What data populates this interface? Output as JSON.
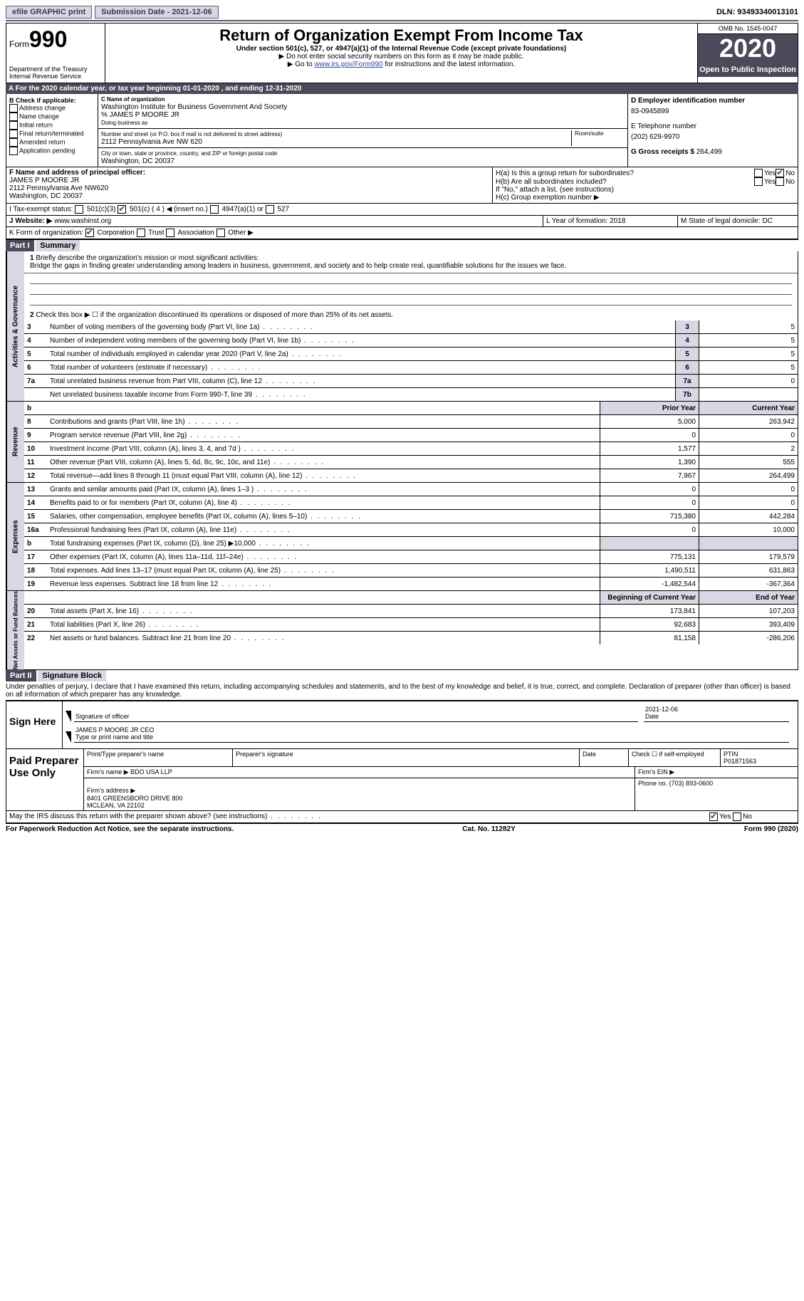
{
  "topbar": {
    "efile": "efile GRAPHIC print",
    "submission": "Submission Date - 2021-12-06",
    "dln": "DLN: 93493340013101"
  },
  "header": {
    "form_label": "Form",
    "form_num": "990",
    "dept": "Department of the Treasury\nInternal Revenue Service",
    "title": "Return of Organization Exempt From Income Tax",
    "subtitle": "Under section 501(c), 527, or 4947(a)(1) of the Internal Revenue Code (except private foundations)",
    "note1": "▶ Do not enter social security numbers on this form as it may be made public.",
    "note2_pre": "▶ Go to ",
    "note2_link": "www.irs.gov/Form990",
    "note2_post": " for instructions and the latest information.",
    "omb": "OMB No. 1545-0047",
    "year": "2020",
    "inspection": "Open to Public Inspection"
  },
  "period": "For the 2020 calendar year, or tax year beginning 01-01-2020   , and ending 12-31-2020",
  "section_b": {
    "label": "B Check if applicable:",
    "items": [
      "Address change",
      "Name change",
      "Initial return",
      "Final return/terminated",
      "Amended return",
      "Application pending"
    ]
  },
  "section_c": {
    "name_label": "C Name of organization",
    "name": "Washington Institute for Business Government And Society",
    "care_of": "% JAMES P MOORE JR",
    "dba_label": "Doing business as",
    "addr_label": "Number and street (or P.O. box if mail is not delivered to street address)",
    "room_label": "Room/suite",
    "addr": "2112 Pennsylvania Ave NW 620",
    "city_label": "City or town, state or province, country, and ZIP or foreign postal code",
    "city": "Washington, DC  20037"
  },
  "section_d": {
    "ein_label": "D Employer identification number",
    "ein": "83-0945899",
    "phone_label": "E Telephone number",
    "phone": "(202) 629-9970",
    "gross_label": "G Gross receipts $ ",
    "gross": "264,499"
  },
  "section_f": {
    "label": "F  Name and address of principal officer:",
    "name": "JAMES P MOORE JR",
    "addr": "2112 Pennsylvania Ave NW620\nWashington, DC  20037"
  },
  "section_h": {
    "ha": "H(a)  Is this a group return for subordinates?",
    "hb": "H(b)  Are all subordinates included?",
    "hb_note": "If \"No,\" attach a list. (see instructions)",
    "hc": "H(c)  Group exemption number ▶",
    "yes": "Yes",
    "no": "No"
  },
  "section_i": {
    "label": "I    Tax-exempt status:",
    "opts": [
      "501(c)(3)",
      "501(c) ( 4 ) ◀ (insert no.)",
      "4947(a)(1) or",
      "527"
    ]
  },
  "section_j": {
    "label": "J   Website: ▶",
    "value": " www.washinst.org"
  },
  "section_k": {
    "label": "K Form of organization:",
    "opts": [
      "Corporation",
      "Trust",
      "Association",
      "Other ▶"
    ]
  },
  "section_l": {
    "year_label": "L Year of formation: ",
    "year": "2018",
    "state_label": "M State of legal domicile: ",
    "state": "DC"
  },
  "part1": {
    "header": "Part I",
    "title": "Summary",
    "line1_label": "Briefly describe the organization's mission or most significant activities:",
    "mission": "Bridge the gaps in finding greater understanding among leaders in business, government, and society and to help create real, quantifiable solutions for the issues we face.",
    "line2": "Check this box ▶ ☐  if the organization discontinued its operations or disposed of more than 25% of its net assets.",
    "governance_tab": "Activities & Governance",
    "revenue_tab": "Revenue",
    "expenses_tab": "Expenses",
    "netassets_tab": "Net Assets or Fund Balances",
    "prior_year": "Prior Year",
    "current_year": "Current Year",
    "begin_year": "Beginning of Current Year",
    "end_year": "End of Year",
    "rows_gov": [
      {
        "n": "3",
        "label": "Number of voting members of the governing body (Part VI, line 1a)",
        "box": "3",
        "val": "5"
      },
      {
        "n": "4",
        "label": "Number of independent voting members of the governing body (Part VI, line 1b)",
        "box": "4",
        "val": "5"
      },
      {
        "n": "5",
        "label": "Total number of individuals employed in calendar year 2020 (Part V, line 2a)",
        "box": "5",
        "val": "5"
      },
      {
        "n": "6",
        "label": "Total number of volunteers (estimate if necessary)",
        "box": "6",
        "val": "5"
      },
      {
        "n": "7a",
        "label": "Total unrelated business revenue from Part VIII, column (C), line 12",
        "box": "7a",
        "val": "0"
      },
      {
        "n": "",
        "label": "Net unrelated business taxable income from Form 990-T, line 39",
        "box": "7b",
        "val": ""
      }
    ],
    "rows_rev": [
      {
        "n": "8",
        "label": "Contributions and grants (Part VIII, line 1h)",
        "py": "5,000",
        "cy": "263,942"
      },
      {
        "n": "9",
        "label": "Program service revenue (Part VIII, line 2g)",
        "py": "0",
        "cy": "0"
      },
      {
        "n": "10",
        "label": "Investment income (Part VIII, column (A), lines 3, 4, and 7d )",
        "py": "1,577",
        "cy": "2"
      },
      {
        "n": "11",
        "label": "Other revenue (Part VIII, column (A), lines 5, 6d, 8c, 9c, 10c, and 11e)",
        "py": "1,390",
        "cy": "555"
      },
      {
        "n": "12",
        "label": "Total revenue—add lines 8 through 11 (must equal Part VIII, column (A), line 12)",
        "py": "7,967",
        "cy": "264,499"
      }
    ],
    "rows_exp": [
      {
        "n": "13",
        "label": "Grants and similar amounts paid (Part IX, column (A), lines 1–3 )",
        "py": "0",
        "cy": "0"
      },
      {
        "n": "14",
        "label": "Benefits paid to or for members (Part IX, column (A), line 4)",
        "py": "0",
        "cy": "0"
      },
      {
        "n": "15",
        "label": "Salaries, other compensation, employee benefits (Part IX, column (A), lines 5–10)",
        "py": "715,380",
        "cy": "442,284"
      },
      {
        "n": "16a",
        "label": "Professional fundraising fees (Part IX, column (A), line 11e)",
        "py": "0",
        "cy": "10,000"
      },
      {
        "n": "b",
        "label": "Total fundraising expenses (Part IX, column (D), line 25) ▶10,000",
        "py": "",
        "cy": "",
        "shade": true
      },
      {
        "n": "17",
        "label": "Other expenses (Part IX, column (A), lines 11a–11d, 11f–24e)",
        "py": "775,131",
        "cy": "179,579"
      },
      {
        "n": "18",
        "label": "Total expenses. Add lines 13–17 (must equal Part IX, column (A), line 25)",
        "py": "1,490,511",
        "cy": "631,863"
      },
      {
        "n": "19",
        "label": "Revenue less expenses. Subtract line 18 from line 12",
        "py": "-1,482,544",
        "cy": "-367,364"
      }
    ],
    "rows_net": [
      {
        "n": "20",
        "label": "Total assets (Part X, line 16)",
        "py": "173,841",
        "cy": "107,203"
      },
      {
        "n": "21",
        "label": "Total liabilities (Part X, line 26)",
        "py": "92,683",
        "cy": "393,409"
      },
      {
        "n": "22",
        "label": "Net assets or fund balances. Subtract line 21 from line 20",
        "py": "81,158",
        "cy": "-286,206"
      }
    ]
  },
  "part2": {
    "header": "Part II",
    "title": "Signature Block",
    "penalty": "Under penalties of perjury, I declare that I have examined this return, including accompanying schedules and statements, and to the best of my knowledge and belief, it is true, correct, and complete. Declaration of preparer (other than officer) is based on all information of which preparer has any knowledge.",
    "sign_here": "Sign Here",
    "sig_officer": "Signature of officer",
    "date": "Date",
    "sig_date": "2021-12-06",
    "name_title": "JAMES P MOORE JR CEO",
    "type_name": "Type or print name and title",
    "paid_prep": "Paid Preparer Use Only",
    "prep_name_label": "Print/Type preparer's name",
    "prep_sig_label": "Preparer's signature",
    "prep_date": "Date",
    "check_self": "Check ☐ if self-employed",
    "ptin_label": "PTIN",
    "ptin": "P01871563",
    "firm_name_label": "Firm's name    ▶",
    "firm_name": "BDO USA LLP",
    "firm_ein_label": "Firm's EIN ▶",
    "firm_addr_label": "Firm's address ▶",
    "firm_addr": "8401 GREENSBORO DRIVE 800\nMCLEAN, VA  22102",
    "firm_phone_label": "Phone no. ",
    "firm_phone": "(703) 893-0600",
    "discuss": "May the IRS discuss this return with the preparer shown above? (see instructions)"
  },
  "footer": {
    "pra": "For Paperwork Reduction Act Notice, see the separate instructions.",
    "cat": "Cat. No. 11282Y",
    "form": "Form 990 (2020)"
  }
}
